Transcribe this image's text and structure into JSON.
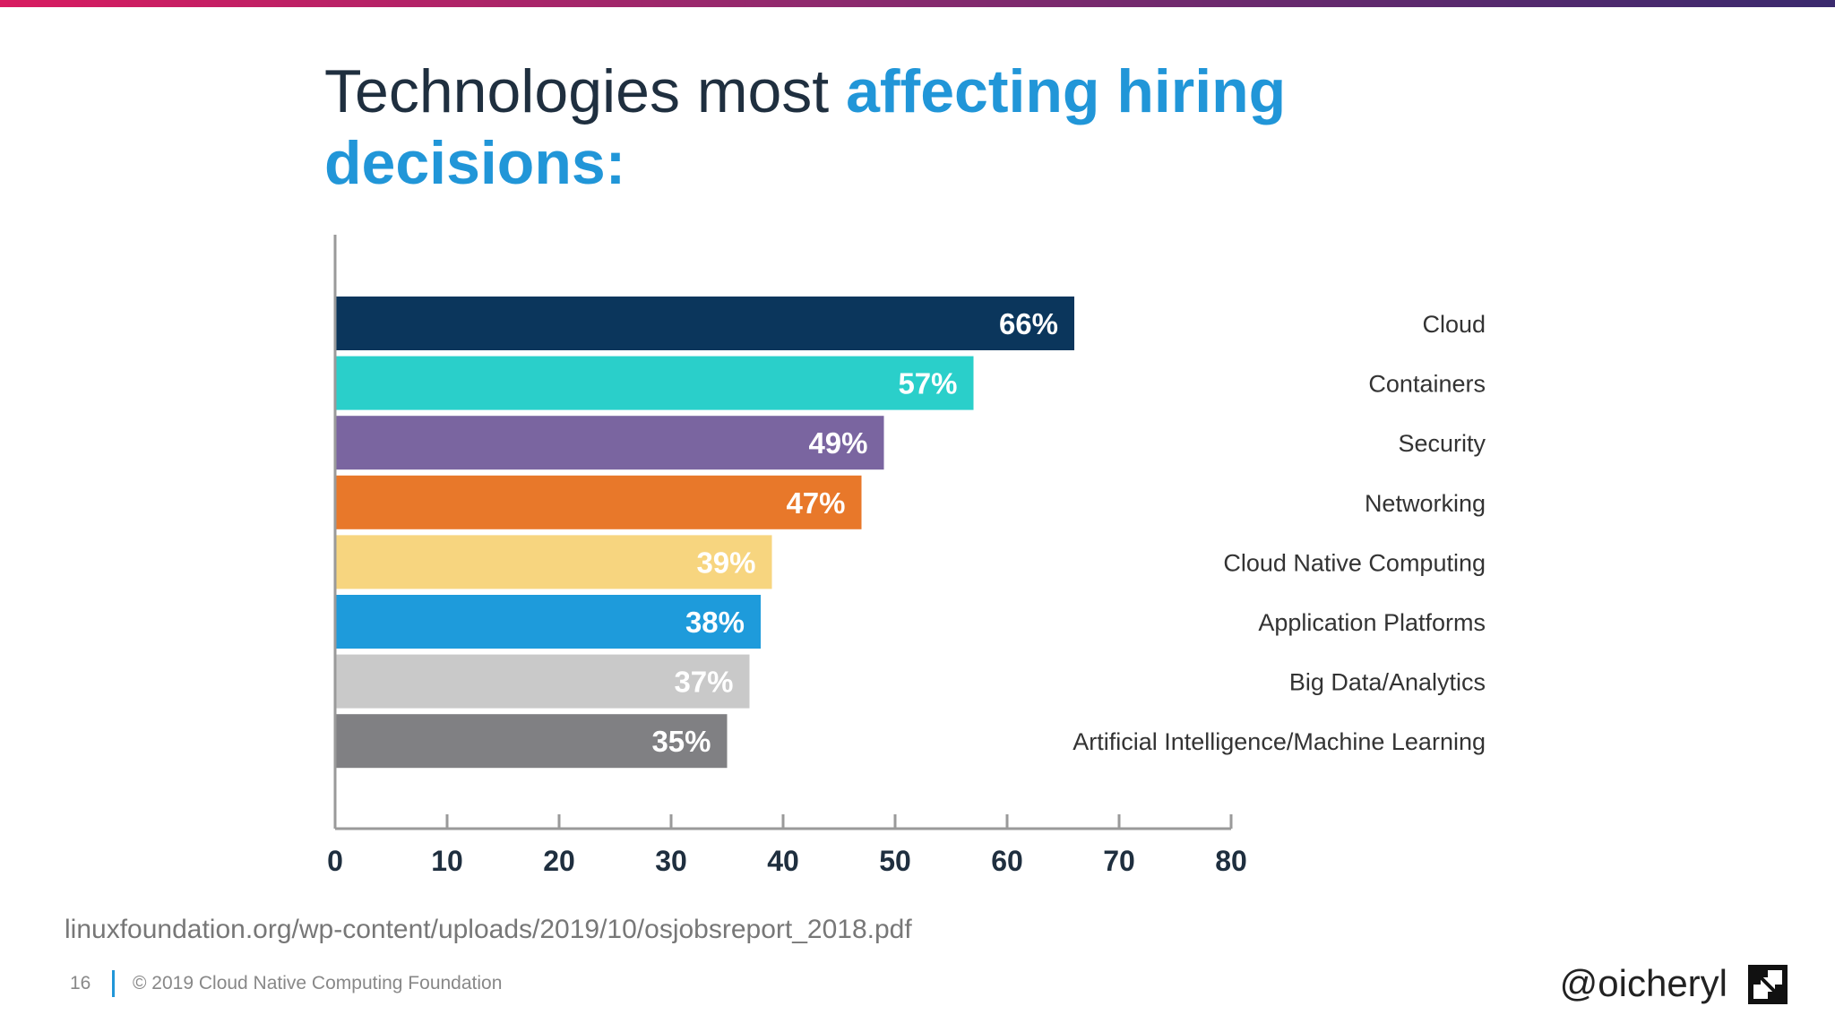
{
  "slide": {
    "title_plain": "Technologies most ",
    "title_highlight_1": "affecting hiring",
    "title_highlight_2": "decisions:",
    "source_url": "linuxfoundation.org/wp-content/uploads/2019/10/osjobsreport_2018.pdf",
    "page_number": "16",
    "copyright": "© 2019 Cloud Native Computing Foundation",
    "handle": "@oicheryl",
    "logo_icon": "cncf-logo-icon",
    "accent_color": "#2196d8"
  },
  "chart_data": {
    "type": "bar",
    "orientation": "horizontal",
    "title": "Technologies most affecting hiring decisions:",
    "categories": [
      "Cloud",
      "Containers",
      "Security",
      "Networking",
      "Cloud Native Computing",
      "Application Platforms",
      "Big Data/Analytics",
      "Artificial Intelligence/Machine Learning"
    ],
    "values": [
      66,
      57,
      49,
      47,
      39,
      38,
      37,
      35
    ],
    "value_labels": [
      "66%",
      "57%",
      "49%",
      "47%",
      "39%",
      "38%",
      "37%",
      "35%"
    ],
    "colors": [
      "#0b365c",
      "#2acfca",
      "#7a65a0",
      "#e8782a",
      "#f7d57f",
      "#1e9bdb",
      "#c9c9c9",
      "#808083"
    ],
    "xlim": [
      0,
      80
    ],
    "xticks": [
      0,
      10,
      20,
      30,
      40,
      50,
      60,
      70,
      80
    ],
    "xtick_labels": [
      "0",
      "10",
      "20",
      "30",
      "40",
      "50",
      "60",
      "70",
      "80"
    ],
    "xlabel": "",
    "ylabel": "",
    "grid": false,
    "category_label_position": "right"
  }
}
